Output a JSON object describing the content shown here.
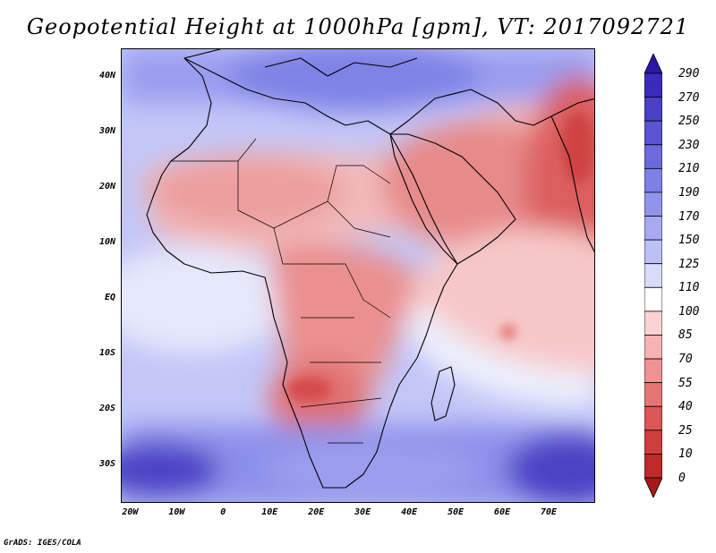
{
  "title": "Geopotential Height at 1000hPa [gpm], VT: 2017092721",
  "credit": "GrADS: IGES/COLA",
  "map": {
    "region": "Africa, Middle East and western Indian Ocean",
    "lat_range": [
      -37,
      45
    ],
    "lon_range": [
      -22,
      80
    ],
    "lat_labels": [
      {
        "lat": 40,
        "text": "40N"
      },
      {
        "lat": 30,
        "text": "30N"
      },
      {
        "lat": 20,
        "text": "20N"
      },
      {
        "lat": 10,
        "text": "10N"
      },
      {
        "lat": 0,
        "text": "EQ"
      },
      {
        "lat": -10,
        "text": "10S"
      },
      {
        "lat": -20,
        "text": "20S"
      },
      {
        "lat": -30,
        "text": "30S"
      }
    ],
    "lon_labels": [
      {
        "lon": -20,
        "text": "20W"
      },
      {
        "lon": -10,
        "text": "10W"
      },
      {
        "lon": 0,
        "text": "0"
      },
      {
        "lon": 10,
        "text": "10E"
      },
      {
        "lon": 20,
        "text": "20E"
      },
      {
        "lon": 30,
        "text": "30E"
      },
      {
        "lon": 40,
        "text": "40E"
      },
      {
        "lon": 50,
        "text": "50E"
      },
      {
        "lon": 60,
        "text": "60E"
      },
      {
        "lon": 70,
        "text": "70E"
      }
    ]
  },
  "colorbar": {
    "levels": [
      "290",
      "270",
      "250",
      "230",
      "210",
      "190",
      "170",
      "150",
      "125",
      "110",
      "100",
      "85",
      "70",
      "55",
      "40",
      "25",
      "10",
      "0"
    ],
    "colors": [
      "#2a17a8",
      "#3a2cba",
      "#4a40c7",
      "#5b55d2",
      "#6d6ade",
      "#7f80e6",
      "#9294ec",
      "#a7aaf1",
      "#bcc0f5",
      "#d8dbf9",
      "#ffffff",
      "#fbd3d3",
      "#f6b3b3",
      "#ef9292",
      "#e77474",
      "#dc5757",
      "#cf3e3e",
      "#bf2a2a",
      "#a81818"
    ]
  }
}
